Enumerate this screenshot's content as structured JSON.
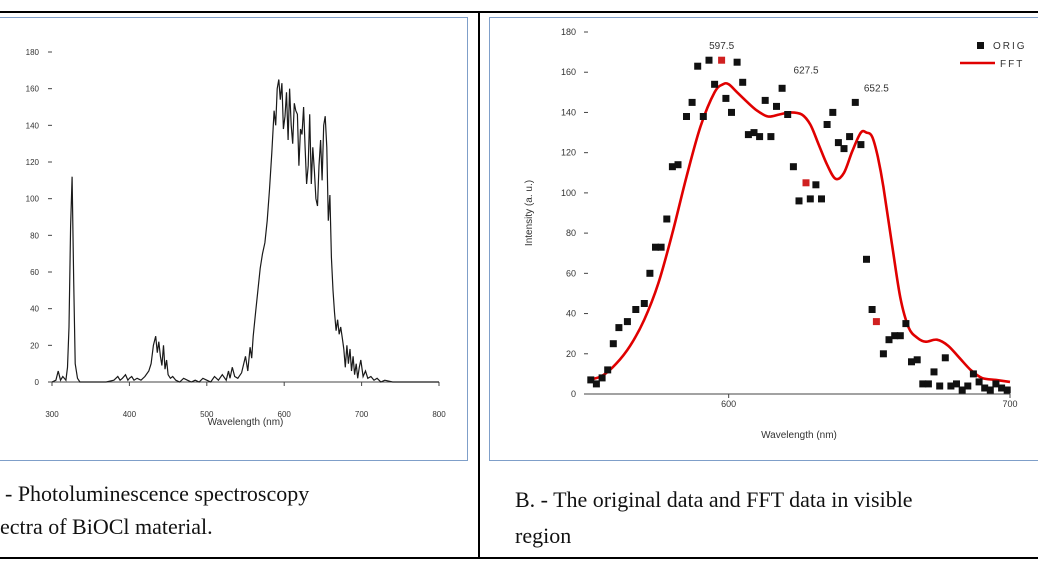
{
  "captions": {
    "a_line1": "- Photoluminescence spectroscopy",
    "a_line2": "ectra of BiOCl material.",
    "b_line1": "B. - The original data and FFT data in visible",
    "b_line2": "region"
  },
  "colors": {
    "frame": "#000000",
    "panel_border": "#7f9fc9",
    "fft": "#e00000",
    "orig": "#111111",
    "peak_marker": "#d02020"
  },
  "chart_data": [
    {
      "type": "line",
      "title": "",
      "xlabel": "Wavelength (nm)",
      "ylabel": "",
      "xlim": [
        300,
        800
      ],
      "ylim": [
        0,
        180
      ],
      "x_ticks": [
        300,
        400,
        500,
        600,
        700,
        800
      ],
      "y_ticks": [
        0,
        20,
        40,
        60,
        80,
        100,
        120,
        140,
        160,
        180
      ],
      "grid": false,
      "series": [
        {
          "x": [
            300,
            305,
            308,
            311,
            314,
            318,
            320,
            322,
            324,
            326,
            328,
            330,
            333,
            336,
            340,
            350,
            360,
            370,
            380,
            385,
            388,
            391,
            395,
            398,
            400,
            403,
            406,
            410,
            415,
            420,
            425,
            428,
            431,
            434,
            436,
            438,
            440,
            442,
            444,
            446,
            448,
            450,
            453,
            456,
            460,
            465,
            470,
            475,
            480,
            485,
            490,
            495,
            500,
            505,
            510,
            515,
            520,
            525,
            528,
            530,
            533,
            536,
            540,
            545,
            550,
            553,
            556,
            558,
            560,
            563,
            566,
            569,
            572,
            575,
            578,
            581,
            584,
            587,
            589,
            591,
            593,
            595,
            597,
            599,
            601,
            603,
            605,
            607,
            609,
            611,
            613,
            615,
            617,
            619,
            621,
            623,
            625,
            627,
            629,
            631,
            633,
            635,
            637,
            639,
            641,
            643,
            645,
            647,
            649,
            651,
            653,
            655,
            657,
            659,
            661,
            663,
            665,
            667,
            669,
            671,
            673,
            675,
            677,
            679,
            681,
            683,
            685,
            687,
            689,
            691,
            693,
            695,
            697,
            699,
            702,
            705,
            708,
            712,
            716,
            720,
            725,
            730,
            740,
            750,
            760,
            780,
            800
          ],
          "y": [
            0,
            1,
            6,
            1,
            3,
            1,
            8,
            30,
            85,
            112,
            55,
            10,
            2,
            0,
            0,
            0,
            0,
            0,
            1,
            3,
            1,
            2,
            4,
            1,
            2,
            3,
            1,
            2,
            1,
            3,
            6,
            10,
            20,
            25,
            16,
            22,
            14,
            9,
            20,
            7,
            12,
            4,
            2,
            3,
            1,
            0,
            2,
            1,
            0,
            1,
            0,
            2,
            1,
            0,
            3,
            1,
            4,
            1,
            6,
            2,
            8,
            3,
            2,
            5,
            14,
            6,
            19,
            13,
            25,
            38,
            50,
            62,
            70,
            76,
            88,
            105,
            125,
            148,
            140,
            160,
            165,
            154,
            163,
            138,
            145,
            158,
            132,
            160,
            140,
            130,
            152,
            148,
            146,
            118,
            138,
            135,
            150,
            128,
            108,
            118,
            146,
            108,
            128,
            115,
            100,
            96,
            118,
            132,
            110,
            140,
            145,
            128,
            88,
            102,
            68,
            50,
            38,
            28,
            34,
            26,
            30,
            24,
            18,
            8,
            20,
            10,
            18,
            6,
            14,
            4,
            10,
            2,
            8,
            12,
            3,
            6,
            2,
            3,
            1,
            2,
            0,
            1,
            0,
            0,
            0,
            0,
            0
          ]
        }
      ]
    },
    {
      "type": "line",
      "title": "",
      "xlabel": "Wavelength (nm)",
      "ylabel": "Intensity (a. u.)",
      "xlim": [
        550,
        700
      ],
      "ylim": [
        0,
        180
      ],
      "x_ticks": [
        600,
        700
      ],
      "y_ticks": [
        0,
        20,
        40,
        60,
        80,
        100,
        120,
        140,
        160,
        180
      ],
      "grid": false,
      "legend": {
        "position": "top-right",
        "entries": [
          "ORIG",
          "FFT"
        ]
      },
      "peak_labels": [
        {
          "x": 597.5,
          "y": 166,
          "label": "597.5"
        },
        {
          "x": 627.5,
          "y": 154,
          "label": "627.5"
        },
        {
          "x": 652.5,
          "y": 145,
          "label": "652.5"
        }
      ],
      "series": [
        {
          "name": "ORIG",
          "x": [
            551,
            553,
            555,
            557,
            559,
            561,
            564,
            567,
            570,
            572,
            574,
            576,
            578,
            580,
            582,
            585,
            587,
            589,
            591,
            593,
            595,
            597.5,
            599,
            601,
            603,
            605,
            607,
            609,
            611,
            613,
            615,
            617,
            619,
            621,
            623,
            625,
            627.5,
            629,
            631,
            633,
            635,
            637,
            639,
            641,
            643,
            645,
            647,
            649,
            651,
            652.5,
            655,
            657,
            659,
            661,
            663,
            665,
            667,
            669,
            671,
            673,
            675,
            677,
            679,
            681,
            683,
            685,
            687,
            689,
            691,
            693,
            695,
            697,
            699
          ],
          "y": [
            7,
            5,
            8,
            12,
            25,
            33,
            36,
            42,
            45,
            60,
            73,
            73,
            87,
            113,
            114,
            138,
            145,
            163,
            138,
            166,
            154,
            166,
            147,
            140,
            165,
            155,
            129,
            130,
            128,
            146,
            128,
            143,
            152,
            139,
            113,
            96,
            105,
            97,
            104,
            97,
            134,
            140,
            125,
            122,
            128,
            145,
            124,
            67,
            42,
            36,
            20,
            27,
            29,
            29,
            35,
            16,
            17,
            5,
            5,
            11,
            4,
            18,
            4,
            5,
            2,
            4,
            10,
            6,
            3,
            2,
            5,
            3,
            2
          ]
        },
        {
          "name": "FFT",
          "x": [
            550,
            555,
            560,
            565,
            570,
            575,
            580,
            585,
            590,
            595,
            598,
            600,
            603,
            606,
            610,
            614,
            618,
            622,
            626,
            629,
            632,
            635,
            638,
            641,
            644,
            647,
            649,
            651,
            653,
            655,
            658,
            661,
            664,
            667,
            670,
            674,
            678,
            682,
            686,
            690,
            695,
            700
          ],
          "y": [
            7,
            9,
            15,
            24,
            37,
            55,
            80,
            108,
            133,
            150,
            154,
            154,
            150,
            146,
            141,
            138,
            139,
            140,
            139,
            134,
            124,
            114,
            107,
            110,
            121,
            130,
            130,
            128,
            118,
            103,
            75,
            48,
            33,
            28,
            26,
            27,
            24,
            18,
            12,
            8,
            7,
            6
          ]
        }
      ]
    }
  ]
}
